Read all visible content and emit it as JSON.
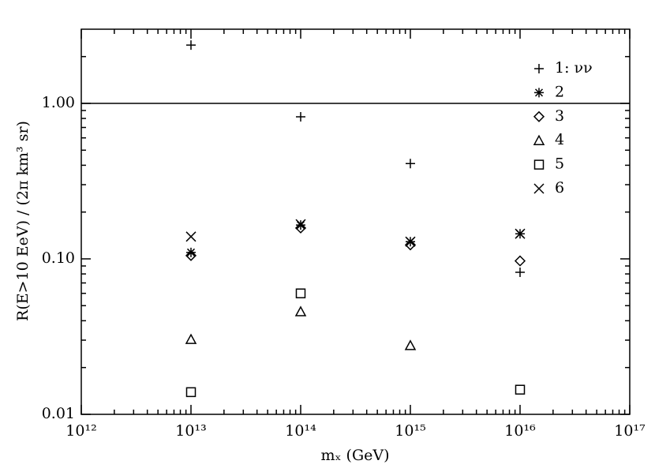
{
  "chart_data": {
    "type": "scatter",
    "x_label": "mₓ (GeV)",
    "y_label": "R(E>10 EeV) / (2π km³ sr)",
    "x_log": true,
    "y_log": true,
    "xlim": [
      1000000000000.0,
      1e+17
    ],
    "xticks": [
      {
        "value": 1000000000000.0,
        "label": "10¹²"
      },
      {
        "value": 10000000000000.0,
        "label": "10¹³"
      },
      {
        "value": 100000000000000.0,
        "label": "10¹⁴"
      },
      {
        "value": 1000000000000000.0,
        "label": "10¹⁵"
      },
      {
        "value": 1e+16,
        "label": "10¹⁶"
      },
      {
        "value": 1e+17,
        "label": "10¹⁷"
      }
    ],
    "ylim": [
      0.01,
      3
    ],
    "yticks": [
      0.01,
      {
        "value": 0.1,
        "label": "0.10"
      },
      {
        "value": 1,
        "label": "1.00"
      }
    ],
    "reference_line": 1,
    "series": [
      {
        "name": "1: νν",
        "marker": "plus",
        "color": "#000000",
        "x": [
          10000000000000.0,
          100000000000000.0,
          1000000000000000.0,
          1e+16
        ],
        "values": [
          2.37,
          0.82,
          0.41,
          0.082
        ]
      },
      {
        "name": "2",
        "marker": "asterisk",
        "color": "#000000",
        "x": [
          10000000000000.0,
          100000000000000.0,
          1000000000000000.0,
          1e+16
        ],
        "values": [
          0.11,
          0.165,
          0.129,
          0.145
        ]
      },
      {
        "name": "3",
        "marker": "diamond",
        "color": "#000000",
        "x": [
          10000000000000.0,
          100000000000000.0,
          1000000000000000.0,
          1e+16
        ],
        "values": [
          0.105,
          0.158,
          0.123,
          0.097
        ]
      },
      {
        "name": "4",
        "marker": "triangle",
        "color": "#000000",
        "x": [
          10000000000000.0,
          100000000000000.0,
          1000000000000000.0
        ],
        "values": [
          0.0303,
          0.0457,
          0.0277
        ]
      },
      {
        "name": "5",
        "marker": "square",
        "color": "#000000",
        "x": [
          10000000000000.0,
          100000000000000.0,
          1e+16
        ],
        "values": [
          0.0139,
          0.06,
          0.0144
        ]
      },
      {
        "name": "6",
        "marker": "cross",
        "color": "#000000",
        "x": [
          10000000000000.0,
          100000000000000.0,
          1000000000000000.0,
          1e+16
        ],
        "values": [
          0.139,
          0.167,
          0.129,
          0.145
        ]
      }
    ]
  }
}
